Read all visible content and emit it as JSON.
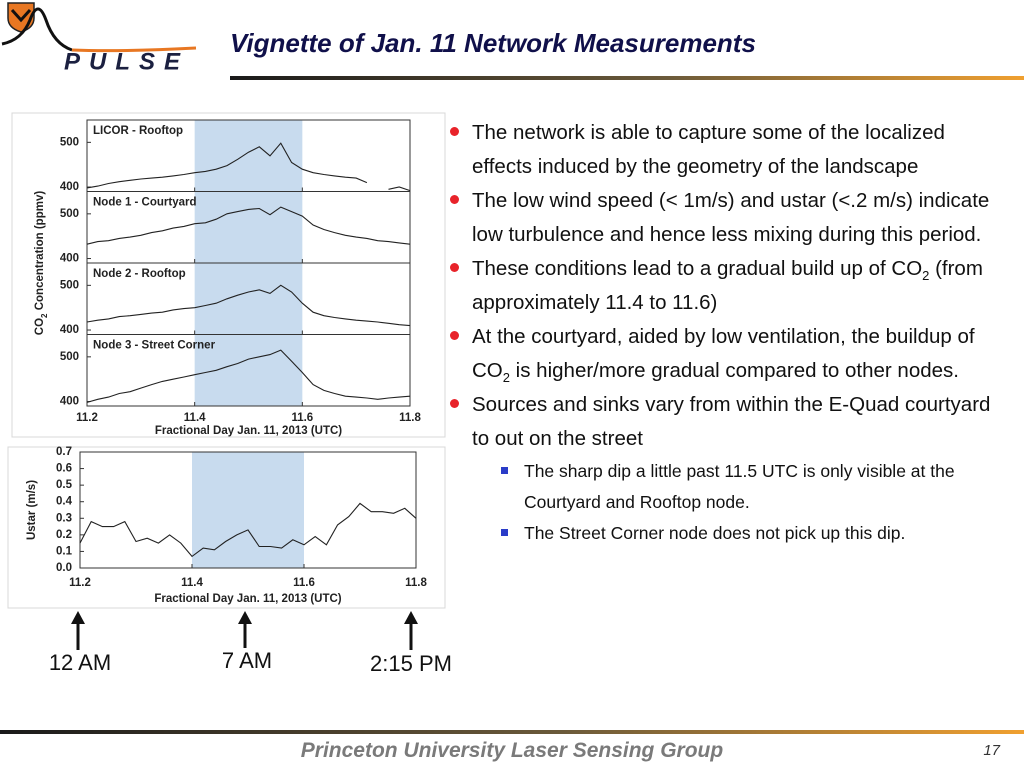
{
  "slide": {
    "logo": "PULSE",
    "title": "Vignette of Jan. 11 Network Measurements",
    "bullets": [
      {
        "text": [
          "The network is able to capture some of the localized effects induced by the geometry of the landscape"
        ]
      },
      {
        "text": [
          "The low wind speed (< 1m/s) and ustar (<.2 m/s) indicate low turbulence and hence less mixing during this period."
        ]
      },
      {
        "text": [
          "These conditions lead to a gradual build up of CO",
          "2",
          " (from approximately 11.4 to 11.6)"
        ]
      },
      {
        "text": [
          "At the courtyard, aided by low ventilation, the buildup of CO",
          "2",
          " is higher/more gradual compared to other nodes."
        ]
      },
      {
        "text": [
          "Sources and sinks vary from within the E-Quad courtyard to out on the street"
        ],
        "sub_bullets": [
          "The sharp dip a little past 11.5 UTC is only visible at the Courtyard and Rooftop node.",
          "The Street Corner node does not pick up this dip."
        ]
      }
    ],
    "annotations": [
      "12 AM",
      "7 AM",
      "2:15 PM"
    ],
    "footer": "Princeton University Laser Sensing Group",
    "page_number": "17"
  },
  "chart_data": [
    {
      "type": "line",
      "panels": "stacked",
      "ylabel": [
        "CO",
        "2",
        " Concentration (ppmv)"
      ],
      "xlabel": "Fractional Day Jan. 11, 2013 (UTC)",
      "x": [
        11.2,
        11.22,
        11.24,
        11.26,
        11.28,
        11.3,
        11.32,
        11.34,
        11.36,
        11.38,
        11.4,
        11.42,
        11.44,
        11.46,
        11.48,
        11.5,
        11.52,
        11.54,
        11.56,
        11.58,
        11.6,
        11.62,
        11.64,
        11.66,
        11.68,
        11.7,
        11.72,
        11.74,
        11.76,
        11.78,
        11.8
      ],
      "xlim": [
        11.2,
        11.8
      ],
      "xticks": [
        11.2,
        11.4,
        11.6,
        11.8
      ],
      "ylim": [
        390,
        550
      ],
      "yticks": [
        400,
        500
      ],
      "highlight": [
        11.4,
        11.6
      ],
      "highlight_color": "#c8dbee",
      "series": [
        {
          "name": "LICOR - Rooftop",
          "color": "#222222",
          "values": [
            398,
            402,
            408,
            412,
            415,
            418,
            420,
            422,
            425,
            428,
            432,
            435,
            440,
            448,
            462,
            478,
            490,
            470,
            498,
            455,
            440,
            432,
            428,
            425,
            422,
            420,
            410,
            null,
            395,
            400,
            392
          ]
        },
        {
          "name": "Node 1 - Courtyard",
          "color": "#222222",
          "values": [
            432,
            438,
            440,
            445,
            448,
            452,
            458,
            462,
            468,
            472,
            478,
            480,
            488,
            500,
            505,
            510,
            512,
            498,
            515,
            505,
            495,
            475,
            465,
            458,
            452,
            448,
            445,
            440,
            438,
            435,
            432
          ]
        },
        {
          "name": "Node 2 - Rooftop",
          "color": "#222222",
          "values": [
            418,
            422,
            425,
            430,
            432,
            435,
            438,
            440,
            445,
            448,
            450,
            455,
            460,
            470,
            478,
            485,
            490,
            482,
            500,
            485,
            460,
            440,
            432,
            428,
            425,
            422,
            420,
            418,
            415,
            412,
            410
          ]
        },
        {
          "name": "Node 3 - Street Corner",
          "color": "#222222",
          "values": [
            398,
            405,
            410,
            418,
            422,
            430,
            438,
            445,
            450,
            455,
            460,
            465,
            470,
            478,
            485,
            495,
            500,
            505,
            515,
            490,
            465,
            438,
            425,
            418,
            412,
            410,
            408,
            405,
            408,
            410,
            412
          ]
        }
      ]
    },
    {
      "type": "line",
      "ylabel": "Ustar (m/s)",
      "xlabel": "Fractional Day Jan. 11, 2013 (UTC)",
      "x": [
        11.2,
        11.22,
        11.24,
        11.26,
        11.28,
        11.3,
        11.32,
        11.34,
        11.36,
        11.38,
        11.4,
        11.42,
        11.44,
        11.46,
        11.48,
        11.5,
        11.52,
        11.54,
        11.56,
        11.58,
        11.6,
        11.62,
        11.64,
        11.66,
        11.68,
        11.7,
        11.72,
        11.74,
        11.76,
        11.78,
        11.8
      ],
      "xlim": [
        11.2,
        11.8
      ],
      "xticks": [
        11.2,
        11.4,
        11.6,
        11.8
      ],
      "ylim": [
        0,
        0.7
      ],
      "yticks": [
        {
          "value": 0,
          "label": "0.0"
        },
        0.1,
        0.2,
        0.3,
        0.4,
        0.5,
        0.6,
        0.7
      ],
      "highlight": [
        11.4,
        11.6
      ],
      "highlight_color": "#c8dbee",
      "series": [
        {
          "color": "#222222",
          "values": [
            0.15,
            0.28,
            0.25,
            0.25,
            0.28,
            0.16,
            0.18,
            0.15,
            0.2,
            0.15,
            0.07,
            0.12,
            0.11,
            0.16,
            0.2,
            0.23,
            0.13,
            0.13,
            0.12,
            0.17,
            0.14,
            0.19,
            0.14,
            0.26,
            0.31,
            0.39,
            0.34,
            0.34,
            0.33,
            0.36,
            0.3
          ]
        }
      ]
    }
  ]
}
